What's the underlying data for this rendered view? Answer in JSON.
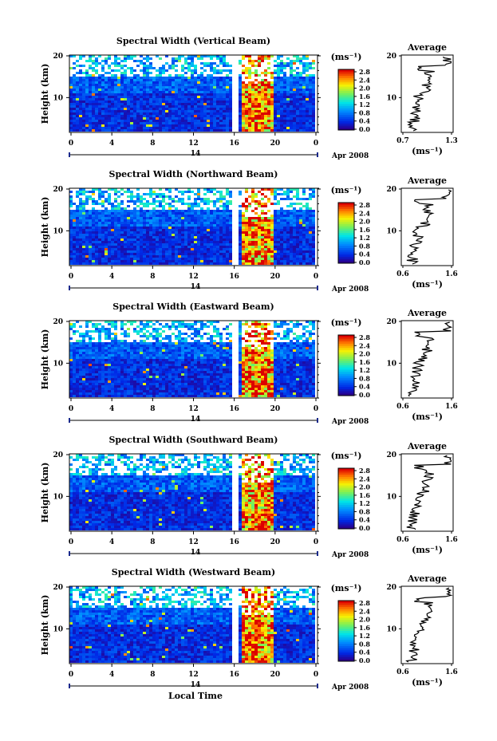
{
  "chart_data": [
    {
      "type": "heatmap",
      "title": "Spectral Width (Vertical Beam)",
      "ylabel": "Height (km)",
      "xlabel": "",
      "x_ticks": [
        "0",
        "4",
        "8",
        "12",
        "16",
        "20",
        "0"
      ],
      "y_ticks": [
        "20",
        "10"
      ],
      "date_ticks": [
        "14"
      ],
      "date_label": "Apr 2008",
      "colorbar_unit": "(ms⁻¹)",
      "colorbar_ticks": [
        "2.8",
        "2.4",
        "2.0",
        "1.6",
        "1.2",
        "0.8",
        "0.4",
        "0.0"
      ],
      "avg_title": "Average",
      "avg_unit": "(ms⁻¹)",
      "avg_xticks": [
        "0.7",
        "1.3"
      ],
      "avg_xrange": [
        0.7,
        1.3
      ],
      "avg_yticks": [
        "20",
        "10"
      ]
    },
    {
      "type": "heatmap",
      "title": "Spectral Width (Northward Beam)",
      "ylabel": "Height (km)",
      "xlabel": "",
      "x_ticks": [
        "0",
        "4",
        "8",
        "12",
        "16",
        "20",
        "0"
      ],
      "y_ticks": [
        "20",
        "10"
      ],
      "date_ticks": [
        "14"
      ],
      "date_label": "Apr 2008",
      "colorbar_unit": "(ms⁻¹)",
      "colorbar_ticks": [
        "2.8",
        "2.4",
        "2.0",
        "1.6",
        "1.2",
        "0.8",
        "0.4",
        "0.0"
      ],
      "avg_title": "Average",
      "avg_unit": "(ms⁻¹)",
      "avg_xticks": [
        "0.6",
        "1.6"
      ],
      "avg_xrange": [
        0.6,
        1.6
      ],
      "avg_yticks": [
        "20",
        "10"
      ]
    },
    {
      "type": "heatmap",
      "title": "Spectral Width (Eastward Beam)",
      "ylabel": "Height (km)",
      "xlabel": "",
      "x_ticks": [
        "0",
        "4",
        "8",
        "12",
        "16",
        "20",
        "0"
      ],
      "y_ticks": [
        "20",
        "10"
      ],
      "date_ticks": [
        "14"
      ],
      "date_label": "Apr 2008",
      "colorbar_unit": "(ms⁻¹)",
      "colorbar_ticks": [
        "2.8",
        "2.4",
        "2.0",
        "1.6",
        "1.2",
        "0.8",
        "0.4",
        "0.0"
      ],
      "avg_title": "Average",
      "avg_unit": "(ms⁻¹)",
      "avg_xticks": [
        "0.6",
        "1.6"
      ],
      "avg_xrange": [
        0.6,
        1.6
      ],
      "avg_yticks": [
        "20",
        "10"
      ]
    },
    {
      "type": "heatmap",
      "title": "Spectral Width (Southward Beam)",
      "ylabel": "Height (km)",
      "xlabel": "",
      "x_ticks": [
        "0",
        "4",
        "8",
        "12",
        "16",
        "20",
        "0"
      ],
      "y_ticks": [
        "20",
        "10"
      ],
      "date_ticks": [
        "14"
      ],
      "date_label": "Apr 2008",
      "colorbar_unit": "(ms⁻¹)",
      "colorbar_ticks": [
        "2.8",
        "2.4",
        "2.0",
        "1.6",
        "1.2",
        "0.8",
        "0.4",
        "0.0"
      ],
      "avg_title": "Average",
      "avg_unit": "(ms⁻¹)",
      "avg_xticks": [
        "0.6",
        "1.6"
      ],
      "avg_xrange": [
        0.6,
        1.6
      ],
      "avg_yticks": [
        "20",
        "10"
      ]
    },
    {
      "type": "heatmap",
      "title": "Spectral Width (Westward Beam)",
      "ylabel": "Height (km)",
      "xlabel": "Local Time",
      "x_ticks": [
        "0",
        "4",
        "8",
        "12",
        "16",
        "20",
        "0"
      ],
      "y_ticks": [
        "20",
        "10"
      ],
      "date_ticks": [
        "14"
      ],
      "date_label": "Apr 2008",
      "colorbar_unit": "(ms⁻¹)",
      "colorbar_ticks": [
        "2.8",
        "2.4",
        "2.0",
        "1.6",
        "1.2",
        "0.8",
        "0.4",
        "0.0"
      ],
      "avg_title": "Average",
      "avg_unit": "(ms⁻¹)",
      "avg_xticks": [
        "0.6",
        "1.6"
      ],
      "avg_xrange": [
        0.6,
        1.6
      ],
      "avg_yticks": [
        "20",
        "10"
      ]
    }
  ]
}
